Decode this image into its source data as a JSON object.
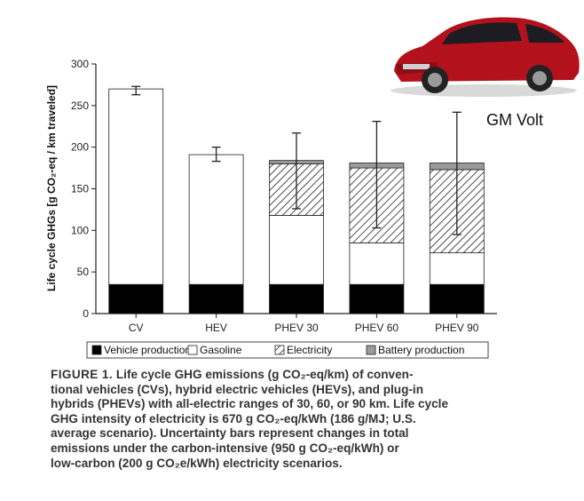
{
  "chart_data": {
    "type": "bar",
    "stacked": true,
    "categories": [
      "CV",
      "HEV",
      "PHEV 30",
      "PHEV 60",
      "PHEV 90"
    ],
    "ylabel": "Life cycle GHGs [g CO₂-eq / km traveled]",
    "ylim": [
      0,
      300
    ],
    "yticks": [
      0,
      50,
      100,
      150,
      200,
      250,
      300
    ],
    "series": [
      {
        "name": "Vehicle production",
        "values": [
          35,
          35,
          35,
          35,
          35
        ],
        "color": "#000000",
        "pattern": "solid"
      },
      {
        "name": "Gasoline",
        "values": [
          235,
          156,
          83,
          50,
          38
        ],
        "color": "#ffffff",
        "pattern": "solid"
      },
      {
        "name": "Electricity",
        "values": [
          0,
          0,
          62,
          90,
          100
        ],
        "color": "#ffffff",
        "pattern": "hatch"
      },
      {
        "name": "Battery production",
        "values": [
          0,
          0,
          4,
          6,
          8
        ],
        "color": "#9a9a9a",
        "pattern": "solid"
      }
    ],
    "error_bars": [
      {
        "category": "CV",
        "center": 270,
        "low": 263,
        "high": 273
      },
      {
        "category": "HEV",
        "center": 191,
        "low": 183,
        "high": 200
      },
      {
        "category": "PHEV 30",
        "center": 184,
        "low": 126,
        "high": 217
      },
      {
        "category": "PHEV 60",
        "center": 182,
        "low": 103,
        "high": 231
      },
      {
        "category": "PHEV 90",
        "center": 183,
        "low": 95,
        "high": 242
      }
    ],
    "legend_placement": "bottom",
    "grid": false
  },
  "annotation": {
    "car_label": "GM Volt"
  },
  "caption": {
    "figure_label": "FIGURE 1.",
    "line1": "Life cycle GHG emissions (g CO₂-eq/km) of conven-",
    "line2": "tional vehicles (CVs), hybrid electric vehicles (HEVs), and plug-in",
    "line3": "hybrids (PHEVs) with all-electric ranges of 30, 60, or 90 km. Life cycle",
    "line4": "GHG intensity of electricity is 670 g CO₂-eq/kWh (186 g/MJ; U.S.",
    "line5": "average scenario). Uncertainty bars represent changes in total",
    "line6": "emissions under the carbon-intensive (950 g CO₂-eq/kWh) or",
    "line7": "low-carbon (200 g CO₂e/kWh) electricity scenarios."
  },
  "colors": {
    "car_body": "#b3121d",
    "car_window": "#1c1c22"
  }
}
